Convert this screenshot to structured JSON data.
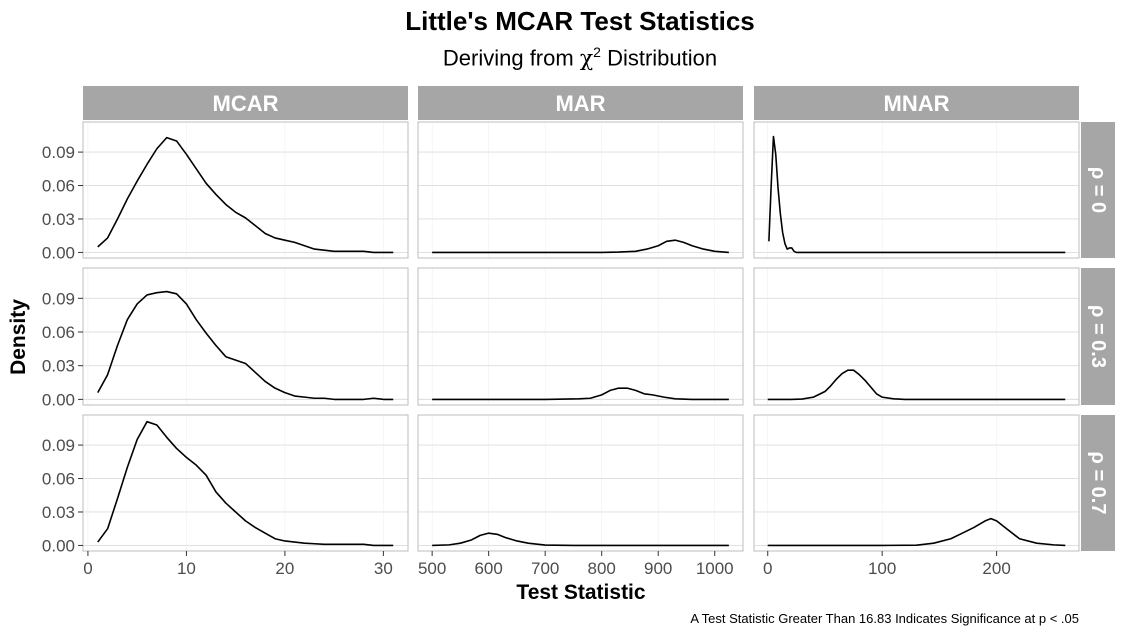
{
  "chart_data": {
    "type": "line",
    "title": "Little's MCAR Test Statistics",
    "subtitle": {
      "prefix": "Deriving from ",
      "symbol": "χ",
      "superscript": "2",
      "suffix": " Distribution"
    },
    "xlabel": "Test Statistic",
    "ylabel": "Density",
    "caption": "A Test Statistic Greater Than 16.83 Indicates Significance at p < .05",
    "columns": [
      "MCAR",
      "MAR",
      "MNAR"
    ],
    "rows": [
      "ρ = 0",
      "ρ = 0.3",
      "ρ = 0.7"
    ],
    "ylim": [
      -0.005,
      0.117
    ],
    "yticks": [
      0.0,
      0.03,
      0.06,
      0.09
    ],
    "ytick_labels": [
      "0.00",
      "0.03",
      "0.06",
      "0.09"
    ],
    "xaxes": [
      {
        "xlim": [
          -0.5,
          32.5
        ],
        "ticks": [
          0,
          10,
          20,
          30
        ],
        "tick_labels": [
          "0",
          "10",
          "20",
          "30"
        ]
      },
      {
        "xlim": [
          475,
          1050
        ],
        "ticks": [
          500,
          600,
          700,
          800,
          900,
          1000
        ],
        "tick_labels": [
          "500",
          "600",
          "700",
          "800",
          "900",
          "1000"
        ]
      },
      {
        "xlim": [
          -12,
          272
        ],
        "ticks": [
          0,
          100,
          200
        ],
        "tick_labels": [
          "0",
          "100",
          "200"
        ]
      }
    ],
    "panels": [
      [
        {
          "x": [
            1,
            2,
            3,
            4,
            5,
            6,
            7,
            8,
            9,
            10,
            11,
            12,
            13,
            14,
            15,
            16,
            17,
            18,
            19,
            20,
            21,
            22,
            23,
            24,
            25,
            26,
            27,
            28,
            29,
            30,
            31
          ],
          "y": [
            0.005,
            0.013,
            0.03,
            0.048,
            0.064,
            0.079,
            0.093,
            0.103,
            0.1,
            0.088,
            0.075,
            0.062,
            0.052,
            0.043,
            0.036,
            0.031,
            0.024,
            0.017,
            0.013,
            0.011,
            0.009,
            0.006,
            0.003,
            0.002,
            0.001,
            0.001,
            0.001,
            0.001,
            0.0,
            0.0,
            0.0
          ]
        },
        {
          "x": [
            500,
            550,
            600,
            650,
            700,
            750,
            800,
            830,
            860,
            880,
            900,
            915,
            930,
            945,
            960,
            980,
            1000,
            1025
          ],
          "y": [
            0,
            0,
            0,
            0,
            0,
            0,
            0,
            0.0003,
            0.001,
            0.003,
            0.006,
            0.01,
            0.011,
            0.009,
            0.006,
            0.003,
            0.001,
            0.0
          ]
        },
        {
          "x": [
            1,
            3,
            5,
            7,
            9,
            11,
            13,
            15,
            17,
            19,
            21,
            23,
            25,
            30,
            40,
            60,
            100,
            150,
            200,
            260
          ],
          "y": [
            0.01,
            0.06,
            0.104,
            0.088,
            0.058,
            0.035,
            0.018,
            0.008,
            0.003,
            0.004,
            0.004,
            0.001,
            0.0,
            0,
            0,
            0,
            0,
            0,
            0,
            0
          ]
        }
      ],
      [
        {
          "x": [
            1,
            2,
            3,
            4,
            5,
            6,
            7,
            8,
            9,
            10,
            11,
            12,
            13,
            14,
            15,
            16,
            17,
            18,
            19,
            20,
            21,
            22,
            23,
            24,
            25,
            26,
            27,
            28,
            29,
            30,
            31
          ],
          "y": [
            0.006,
            0.022,
            0.048,
            0.071,
            0.085,
            0.093,
            0.095,
            0.096,
            0.094,
            0.085,
            0.071,
            0.059,
            0.048,
            0.038,
            0.035,
            0.032,
            0.024,
            0.016,
            0.01,
            0.006,
            0.003,
            0.002,
            0.001,
            0.001,
            0.0,
            0.0,
            0.0,
            0.0,
            0.001,
            0.0,
            0.0
          ]
        },
        {
          "x": [
            500,
            600,
            700,
            760,
            780,
            800,
            815,
            830,
            845,
            860,
            875,
            890,
            910,
            930,
            960,
            1000,
            1025
          ],
          "y": [
            0,
            0,
            0,
            0.0005,
            0.001,
            0.004,
            0.008,
            0.01,
            0.01,
            0.008,
            0.005,
            0.004,
            0.002,
            0.0005,
            0.0,
            0,
            0
          ]
        },
        {
          "x": [
            0,
            20,
            30,
            40,
            50,
            55,
            60,
            65,
            70,
            75,
            80,
            85,
            90,
            95,
            100,
            110,
            120,
            150,
            200,
            260
          ],
          "y": [
            0,
            0,
            0.0003,
            0.002,
            0.007,
            0.012,
            0.018,
            0.023,
            0.026,
            0.026,
            0.022,
            0.017,
            0.011,
            0.005,
            0.002,
            0.0005,
            0.0,
            0,
            0,
            0
          ]
        }
      ],
      [
        {
          "x": [
            1,
            2,
            3,
            4,
            5,
            6,
            7,
            8,
            9,
            10,
            11,
            12,
            13,
            14,
            15,
            16,
            17,
            18,
            19,
            20,
            21,
            22,
            23,
            24,
            25,
            26,
            27,
            28,
            29,
            30,
            31
          ],
          "y": [
            0.003,
            0.015,
            0.042,
            0.07,
            0.095,
            0.111,
            0.108,
            0.097,
            0.087,
            0.079,
            0.072,
            0.063,
            0.048,
            0.038,
            0.03,
            0.022,
            0.016,
            0.011,
            0.006,
            0.004,
            0.003,
            0.002,
            0.0015,
            0.001,
            0.001,
            0.001,
            0.001,
            0.001,
            0.0,
            0.0,
            0.0
          ]
        },
        {
          "x": [
            500,
            530,
            550,
            570,
            585,
            600,
            615,
            630,
            650,
            670,
            700,
            750,
            800,
            900,
            1025
          ],
          "y": [
            0,
            0.0005,
            0.002,
            0.005,
            0.009,
            0.011,
            0.01,
            0.007,
            0.004,
            0.002,
            0.0003,
            0.0,
            0,
            0,
            0
          ]
        },
        {
          "x": [
            0,
            50,
            100,
            130,
            145,
            160,
            170,
            180,
            190,
            195,
            200,
            210,
            220,
            235,
            250,
            260
          ],
          "y": [
            0,
            0,
            0,
            0.0002,
            0.002,
            0.006,
            0.011,
            0.016,
            0.022,
            0.024,
            0.022,
            0.014,
            0.006,
            0.002,
            0.0005,
            0.0
          ]
        }
      ]
    ],
    "grid": true,
    "legend": "none"
  }
}
